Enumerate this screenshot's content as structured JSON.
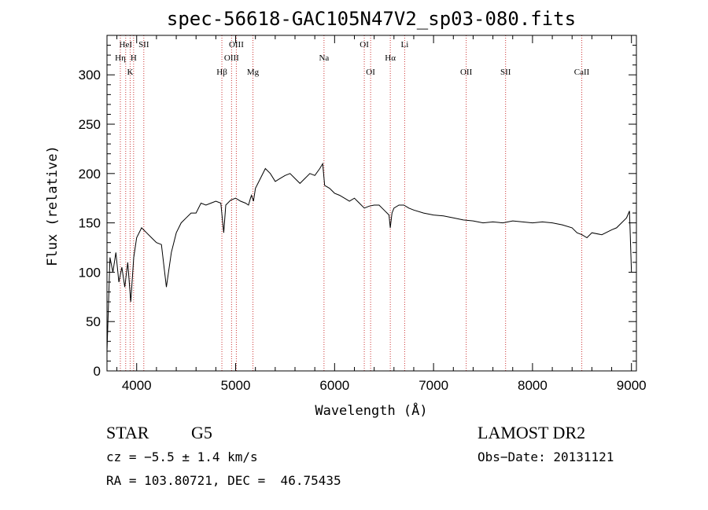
{
  "chart_data": {
    "type": "line",
    "title": "spec-56618-GAC105N47V2_sp03-080.fits",
    "xlabel": "Wavelength (Å)",
    "ylabel": "Flux (relative)",
    "xlim": [
      3700,
      9050
    ],
    "ylim": [
      0,
      340
    ],
    "xticks": [
      4000,
      5000,
      6000,
      7000,
      8000,
      9000
    ],
    "yticks": [
      0,
      50,
      100,
      150,
      200,
      250,
      300
    ],
    "grid": false,
    "lines": [
      {
        "name": "HeI",
        "x": 3889,
        "row": 1
      },
      {
        "name": "Hη",
        "x": 3835,
        "row": 2
      },
      {
        "name": "SII",
        "x": 4072,
        "row": 1
      },
      {
        "name": "H",
        "x": 3969,
        "row": 2
      },
      {
        "name": "K",
        "x": 3934,
        "row": 3
      },
      {
        "name": "OIII",
        "x": 5007,
        "row": 1
      },
      {
        "name": "OIII",
        "x": 4959,
        "row": 2
      },
      {
        "name": "Hβ",
        "x": 4861,
        "row": 3
      },
      {
        "name": "Mg",
        "x": 5175,
        "row": 3
      },
      {
        "name": "OI",
        "x": 6300,
        "row": 1
      },
      {
        "name": "Li",
        "x": 6708,
        "row": 1
      },
      {
        "name": "Na",
        "x": 5893,
        "row": 2
      },
      {
        "name": "Hα",
        "x": 6563,
        "row": 2
      },
      {
        "name": "OI",
        "x": 6364,
        "row": 3
      },
      {
        "name": "OII",
        "x": 7330,
        "row": 3
      },
      {
        "name": "SII",
        "x": 7728,
        "row": 3
      },
      {
        "name": "CaII",
        "x": 8498,
        "row": 3
      }
    ],
    "series": [
      {
        "x": [
          3700,
          3730,
          3760,
          3790,
          3820,
          3850,
          3880,
          3910,
          3940,
          3970,
          4000,
          4050,
          4100,
          4150,
          4200,
          4250,
          4300,
          4350,
          4400,
          4450,
          4500,
          4550,
          4600,
          4650,
          4700,
          4750,
          4800,
          4850,
          4880,
          4900,
          4950,
          5000,
          5050,
          5100,
          5130,
          5150,
          5160,
          5180,
          5200,
          5250,
          5300,
          5350,
          5400,
          5450,
          5500,
          5550,
          5600,
          5650,
          5700,
          5750,
          5800,
          5850,
          5880,
          5893,
          5900,
          5950,
          6000,
          6050,
          6100,
          6150,
          6200,
          6250,
          6300,
          6350,
          6400,
          6450,
          6500,
          6550,
          6563,
          6580,
          6600,
          6650,
          6700,
          6750,
          6800,
          6900,
          7000,
          7100,
          7200,
          7300,
          7400,
          7500,
          7600,
          7700,
          7800,
          7900,
          8000,
          8100,
          8200,
          8300,
          8400,
          8450,
          8500,
          8550,
          8600,
          8700,
          8800,
          8850,
          8900,
          8950,
          8980,
          9000
        ],
        "y": [
          20,
          115,
          100,
          120,
          90,
          105,
          85,
          110,
          70,
          115,
          135,
          145,
          140,
          135,
          130,
          128,
          85,
          120,
          140,
          150,
          155,
          160,
          160,
          170,
          168,
          170,
          172,
          170,
          140,
          168,
          173,
          175,
          172,
          170,
          168,
          175,
          178,
          172,
          185,
          195,
          205,
          200,
          192,
          195,
          198,
          200,
          195,
          190,
          195,
          200,
          198,
          205,
          210,
          195,
          188,
          185,
          180,
          178,
          175,
          172,
          175,
          170,
          165,
          167,
          168,
          168,
          163,
          158,
          145,
          160,
          165,
          168,
          168,
          165,
          163,
          160,
          158,
          157,
          155,
          153,
          152,
          150,
          151,
          150,
          152,
          151,
          150,
          151,
          150,
          148,
          145,
          140,
          138,
          135,
          140,
          138,
          143,
          145,
          150,
          155,
          162,
          100
        ]
      }
    ]
  },
  "info": {
    "object_type": "STAR",
    "object_class": "G5",
    "survey": "LAMOST DR2",
    "cz": "cz = −5.5 ± 1.4 km/s",
    "obs_date": "Obs−Date: 20131121",
    "radec": "RA = 103.80721, DEC =  46.75435"
  },
  "colors": {
    "spectrum": "#000000",
    "line_markers": "#cc3333",
    "axes": "#000000"
  }
}
